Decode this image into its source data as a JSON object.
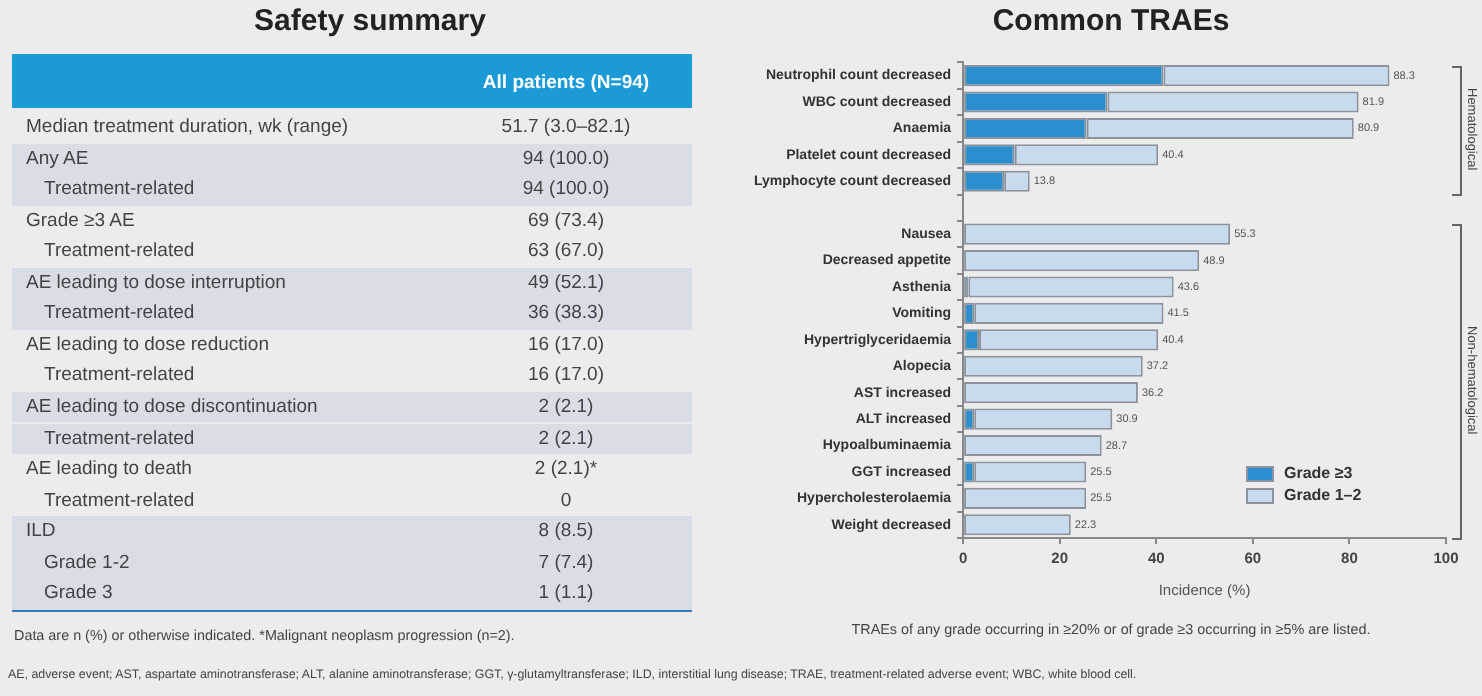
{
  "chart_data": [
    {
      "type": "other",
      "title": "Safety summary",
      "xlabel": "All patients (N=94)",
      "categories": [
        "Median treatment duration, wk (range)",
        "Any AE",
        "Treatment-related",
        "Grade ≥3 AE",
        "Treatment-related",
        "AE leading to dose interruption",
        "Treatment-related",
        "AE leading to dose reduction",
        "Treatment-related",
        "AE leading to dose discontinuation",
        "Treatment-related",
        "AE leading to death",
        "Treatment-related",
        "ILD",
        "Grade 1-2",
        "Grade 3"
      ],
      "value_labels": [
        "51.7 (3.0–82.1)",
        "94 (100.0)",
        "94 (100.0)",
        "69 (73.4)",
        "63 (67.0)",
        "49 (52.1)",
        "36 (38.3)",
        "16 (17.0)",
        "16 (17.0)",
        "2 (2.1)",
        "2 (2.1)",
        "2 (2.1)*",
        "0",
        "8 (8.5)",
        "7 (7.4)",
        "1 (1.1)"
      ],
      "annotations": [
        "Data are n (%) or otherwise indicated. *Malignant neoplasm progression (n=2)."
      ]
    },
    {
      "type": "bar",
      "orientation": "horizontal",
      "stacked": true,
      "title": "Common TRAEs",
      "xlabel": "Incidence (%)",
      "categories": [
        "Neutrophil count decreased",
        "WBC count decreased",
        "Anaemia",
        "Platelet count decreased",
        "Lymphocyte count decreased",
        null,
        "Nausea",
        "Decreased appetite",
        "Asthenia",
        "Vomiting",
        "Hypertriglyceridaemia",
        "Alopecia",
        "AST increased",
        "ALT increased",
        "Hypoalbuminaemia",
        "GGT increased",
        "Hypercholesterolaemia",
        "Weight decreased"
      ],
      "series": [
        {
          "name": "Grade ≥3",
          "color": "#2b8fcf",
          "values": [
            41.5,
            29.9,
            25.6,
            10.7,
            8.5,
            null,
            null,
            null,
            1.1,
            2.3,
            3.3,
            null,
            null,
            2.3,
            null,
            2.3,
            null,
            null
          ]
        },
        {
          "name": "Grade 1–2",
          "color": "#c8dbee",
          "values": [
            46.8,
            52.0,
            55.3,
            29.7,
            5.3,
            null,
            55.3,
            48.9,
            42.5,
            39.2,
            37.1,
            37.2,
            36.2,
            28.6,
            28.7,
            23.2,
            25.5,
            22.3
          ]
        }
      ],
      "totals": [
        "88.3",
        "81.9",
        "80.9",
        "40.4",
        "13.8",
        null,
        "55.3",
        "48.9",
        "43.6",
        "41.5",
        "40.4",
        "37.2",
        "36.2",
        "30.9",
        "28.7",
        "25.5",
        "25.5",
        "22.3"
      ],
      "xlim": [
        0,
        100
      ],
      "xticks": [
        0,
        20,
        40,
        60,
        80,
        100
      ],
      "grid": false,
      "legend": "bottom right",
      "annotations": [
        "Hematological",
        "Non-hematological",
        "TRAEs of any grade occurring in ≥20% or of grade ≥3 occurring in ≥5% are listed.",
        "AE, adverse event; AST, aspartate aminotransferase; ALT, alanine aminotransferase; GGT, γ-glutamyltransferase; ILD, interstitial lung disease; TRAE, treatment-related adverse event; WBC, white blood cell."
      ]
    }
  ]
}
